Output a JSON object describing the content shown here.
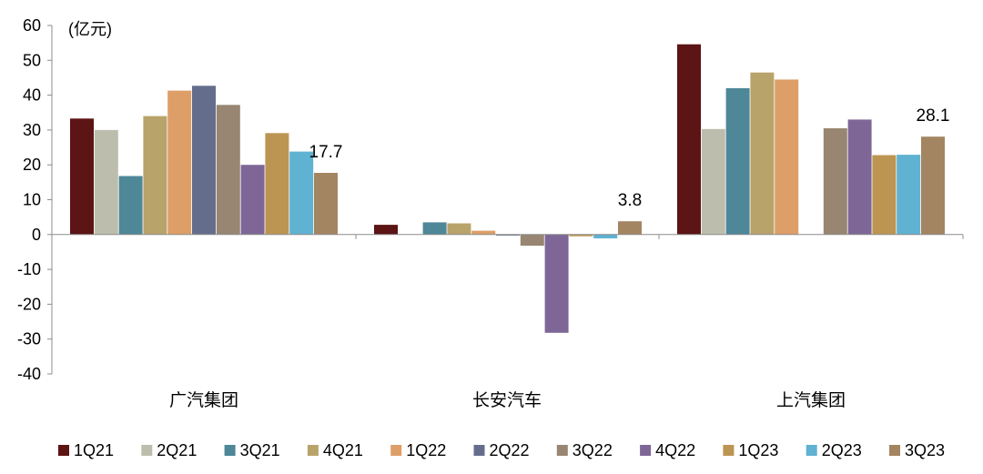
{
  "chart_data": {
    "type": "bar",
    "title": "",
    "unit_label": "(亿元)",
    "xlabel": "",
    "ylabel": "",
    "ylim": [
      -40,
      60
    ],
    "yticks": [
      60,
      50,
      40,
      30,
      20,
      10,
      0,
      -10,
      -20,
      -30,
      -40
    ],
    "ytick_labels": [
      "60",
      "50",
      "40",
      "30",
      "20",
      "10",
      "0",
      "-10",
      "-20",
      "-30",
      "-40"
    ],
    "grid": false,
    "legend_position": "bottom",
    "categories": [
      "广汽集团",
      "长安汽车",
      "上汽集团"
    ],
    "series": [
      {
        "name": "1Q21",
        "color": "#5C1414",
        "values": [
          33.3,
          2.8,
          54.6
        ]
      },
      {
        "name": "2Q21",
        "color": "#BDBDAE",
        "values": [
          30.0,
          null,
          30.3
        ]
      },
      {
        "name": "3Q21",
        "color": "#4E8798",
        "values": [
          16.8,
          3.5,
          42.0
        ]
      },
      {
        "name": "4Q21",
        "color": "#B8A36A",
        "values": [
          34.0,
          3.2,
          46.5
        ]
      },
      {
        "name": "1Q22",
        "color": "#DE9E68",
        "values": [
          41.3,
          1.1,
          44.5
        ]
      },
      {
        "name": "2Q22",
        "color": "#646E8C",
        "values": [
          42.7,
          -0.3,
          null
        ]
      },
      {
        "name": "3Q22",
        "color": "#988672",
        "values": [
          37.2,
          -3.2,
          30.5
        ]
      },
      {
        "name": "4Q22",
        "color": "#7E6797",
        "values": [
          20.0,
          -28.2,
          33.0
        ]
      },
      {
        "name": "1Q23",
        "color": "#BC9553",
        "values": [
          29.1,
          -0.5,
          22.8
        ]
      },
      {
        "name": "2Q23",
        "color": "#5FB2D1",
        "values": [
          23.8,
          -1.1,
          22.9
        ]
      },
      {
        "name": "3Q23",
        "color": "#A48562",
        "values": [
          17.7,
          3.8,
          28.1
        ]
      }
    ],
    "annotations": [
      {
        "category": "广汽集团",
        "series": "3Q23",
        "text": "17.7"
      },
      {
        "category": "长安汽车",
        "series": "3Q23",
        "text": "3.8"
      },
      {
        "category": "上汽集团",
        "series": "3Q23",
        "text": "28.1"
      }
    ]
  }
}
